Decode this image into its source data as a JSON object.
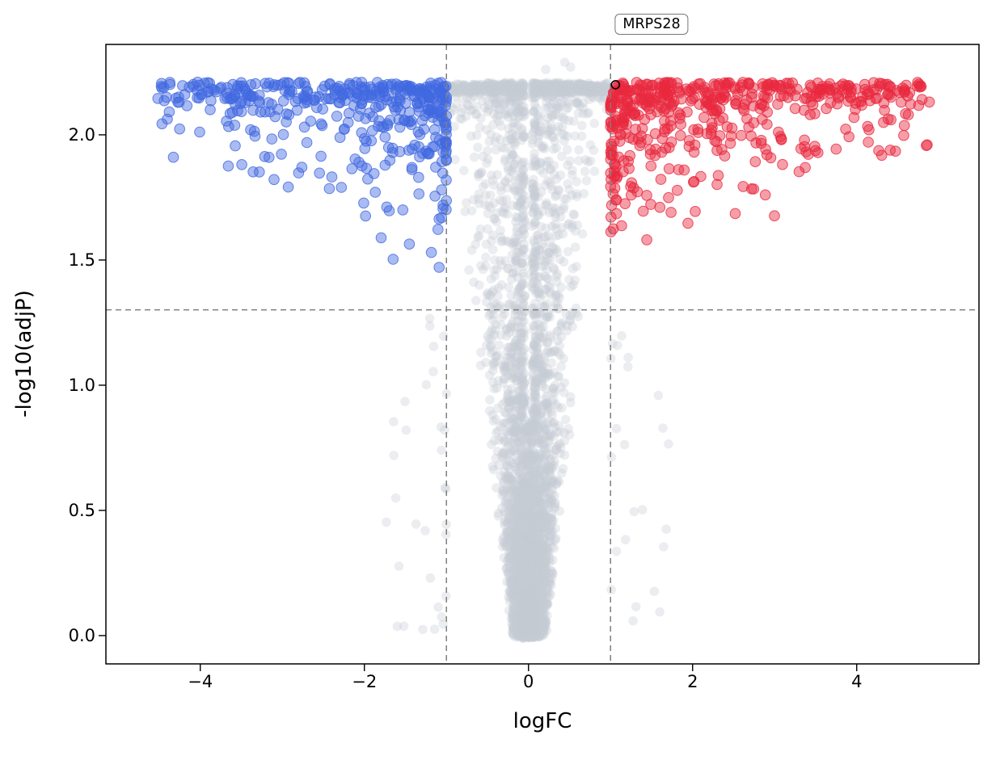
{
  "chart_data": {
    "type": "scatter",
    "title": "",
    "xlabel": "logFC",
    "ylabel": "-log10(adjP)",
    "xlim": [
      -5.15,
      5.49
    ],
    "ylim": [
      -0.113,
      2.361
    ],
    "x_ticks": [
      -4,
      -2,
      0,
      2,
      4
    ],
    "x_tick_labels": [
      "−4",
      "−2",
      "0",
      "2",
      "4"
    ],
    "y_ticks": [
      0,
      0.5,
      1,
      1.5,
      2
    ],
    "y_tick_labels": [
      "0.0",
      "0.5",
      "1.0",
      "1.5",
      "2.0"
    ],
    "grid": false,
    "legend": "none",
    "thresholds": {
      "logfc_low": -1,
      "logfc_high": 1,
      "significance": 1.301,
      "line_color": "#7f7f7f"
    },
    "cap_y": 2.21,
    "annotation": {
      "label": "MRPS28",
      "x": 1.06,
      "y": 2.2
    },
    "series": [
      {
        "name": "not-significant",
        "color": "#c7ccd3",
        "fill_opacity": 0.35,
        "count": 3800,
        "description": "grey genes forming central volcano funnel with dense band at the -log10(adjP) cap between the fold-change thresholds"
      },
      {
        "name": "down-regulated",
        "color": "#4169e1",
        "fill_opacity": 0.45,
        "count": 430,
        "description": "blue significant genes with logFC < -1, dense band at cap extending to logFC ≈ -4.6, scattered wedge down to the significance line"
      },
      {
        "name": "up-regulated",
        "color": "#e8293f",
        "fill_opacity": 0.45,
        "count": 520,
        "description": "red significant genes with logFC > 1, dense band at cap extending to logFC ≈ 5.0, scattered wedge down to the significance line"
      }
    ],
    "point_radius": 6.2
  }
}
